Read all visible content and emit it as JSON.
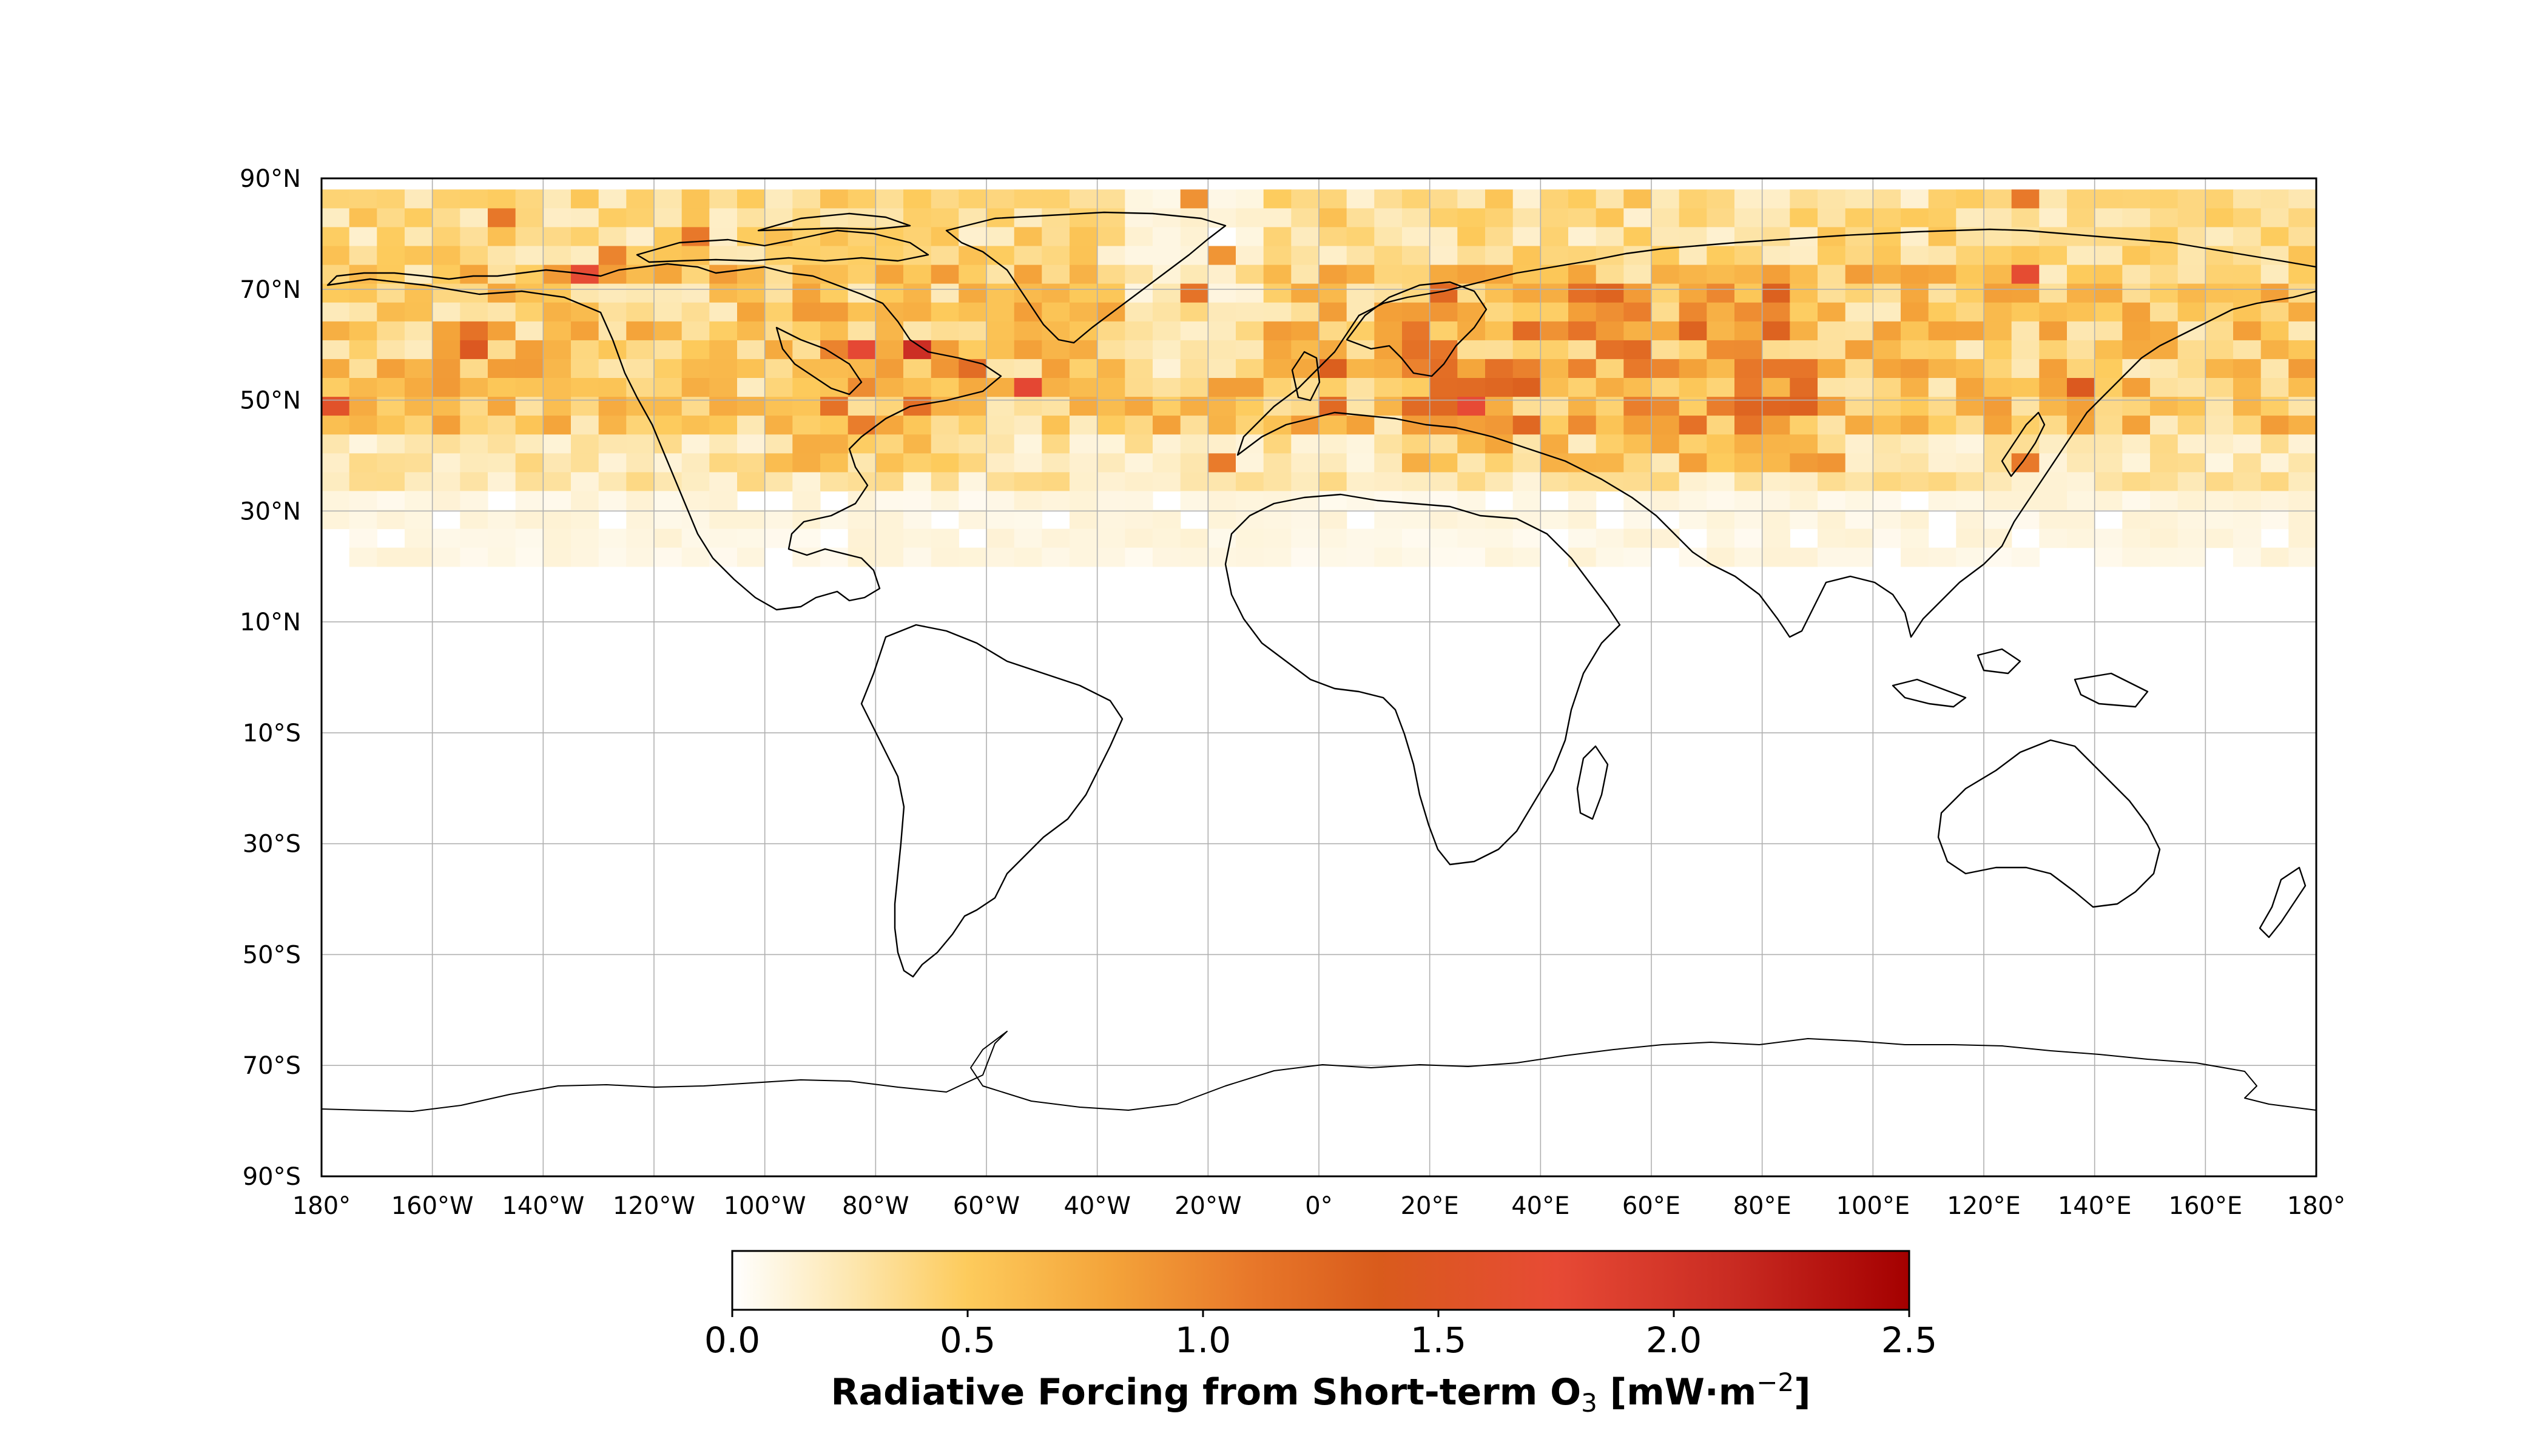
{
  "map": {
    "projection": "Plate Carree (equirectangular), lon -180..180, lat -90..90",
    "gridlines": true,
    "lat_ticks": [
      "90°N",
      "70°N",
      "50°N",
      "30°N",
      "10°N",
      "10°S",
      "30°S",
      "50°S",
      "70°S",
      "90°S"
    ],
    "lon_ticks": [
      "180°",
      "160°W",
      "140°W",
      "120°W",
      "100°W",
      "80°W",
      "60°W",
      "40°W",
      "20°W",
      "0°",
      "20°E",
      "40°E",
      "60°E",
      "80°E",
      "100°E",
      "120°E",
      "140°E",
      "160°E",
      "180°"
    ],
    "field": "gridded radiative forcing, concentrated in northern mid-to-high latitudes (~20°N–88°N), strongest over Eurasia and North America",
    "colors": {
      "coastline": "#000000",
      "gridline": "#b0b0b0",
      "frame": "#000000"
    }
  },
  "colorbar": {
    "title_main": "Radiative Forcing from Short-term O",
    "title_sub": "3",
    "title_unit_pre": " [mW·m",
    "title_unit_sup": "−2",
    "title_unit_post": "]",
    "ticks": [
      "0.0",
      "0.5",
      "1.0",
      "1.5",
      "2.0",
      "2.5"
    ],
    "range": [
      0.0,
      2.5
    ],
    "colormap": [
      "#ffffff",
      "#fde7b0",
      "#fdcb5c",
      "#f4a43a",
      "#e8782a",
      "#d95b1c",
      "#e74a35",
      "#c92b22",
      "#a40000"
    ]
  }
}
